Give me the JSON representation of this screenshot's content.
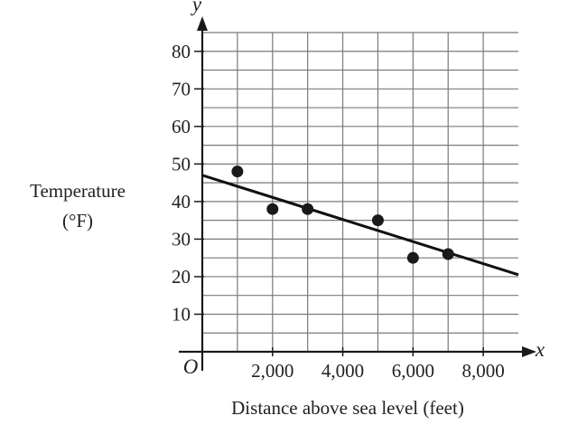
{
  "chart_data": {
    "type": "scatter",
    "xlabel": "Distance above sea level (feet)",
    "ylabel_lines": [
      "Temperature",
      "(°F)"
    ],
    "x_axis_name": "x",
    "y_axis_name": "y",
    "origin_label": "O",
    "xlim": [
      0,
      9000
    ],
    "ylim": [
      0,
      85
    ],
    "x_ticks": [
      2000,
      4000,
      6000,
      8000
    ],
    "x_tick_labels": [
      "2,000",
      "4,000",
      "6,000",
      "8,000"
    ],
    "y_ticks": [
      10,
      20,
      30,
      40,
      50,
      60,
      70,
      80
    ],
    "y_tick_labels": [
      "10",
      "20",
      "30",
      "40",
      "50",
      "60",
      "70",
      "80"
    ],
    "grid": true,
    "grid_minor_x": 1000,
    "grid_minor_y": 5,
    "points": [
      {
        "x": 1000,
        "y": 48
      },
      {
        "x": 2000,
        "y": 38
      },
      {
        "x": 3000,
        "y": 38
      },
      {
        "x": 5000,
        "y": 35
      },
      {
        "x": 6000,
        "y": 25
      },
      {
        "x": 7000,
        "y": 26
      }
    ],
    "trend_line": {
      "from": {
        "x": 0,
        "y": 47
      },
      "to": {
        "x": 9000,
        "y": 20.5
      }
    },
    "colors": {
      "grid": "#7a7a7a",
      "axis": "#1a1a1a",
      "points": "#1a1a1a",
      "line": "#111111"
    }
  }
}
